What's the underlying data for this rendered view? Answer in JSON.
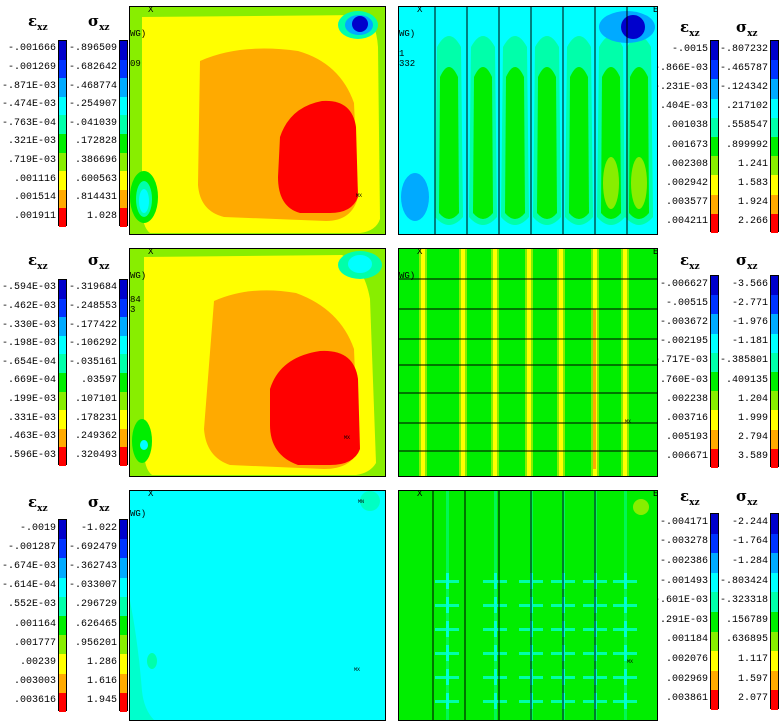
{
  "colors": [
    "#0000cc",
    "#0033ff",
    "#00aaff",
    "#00ffff",
    "#00ffaa",
    "#00ee00",
    "#88ee00",
    "#ffff00",
    "#ffaa00",
    "#ff0000"
  ],
  "legends": [
    {
      "eps_label": "ε",
      "eps_sub": "xz",
      "sig_label": "σ",
      "sig_sub": "xz",
      "eps": [
        "-.001666",
        "-.001269",
        "-.871E-03",
        "-.474E-03",
        "-.763E-04",
        ".321E-03",
        ".719E-03",
        ".001116",
        ".001514",
        ".001911"
      ],
      "sig": [
        "-.896509",
        "-.682642",
        "-.468774",
        "-.254907",
        "-.041039",
        ".172828",
        ".386696",
        ".600563",
        ".814431",
        "1.028"
      ]
    },
    {
      "eps_label": "ε",
      "eps_sub": "xz",
      "sig_label": "σ",
      "sig_sub": "xz",
      "eps": [
        "-.0015",
        "-.866E-03",
        "-.231E-03",
        ".404E-03",
        ".001038",
        ".001673",
        ".002308",
        ".002942",
        ".003577",
        ".004211"
      ],
      "sig": [
        "-.807232",
        "-.465787",
        "-.124342",
        ".217102",
        ".558547",
        ".899992",
        "1.241",
        "1.583",
        "1.924",
        "2.266"
      ]
    },
    {
      "eps_label": "ε",
      "eps_sub": "xz",
      "sig_label": "σ",
      "sig_sub": "xz",
      "eps": [
        "-.594E-03",
        "-.462E-03",
        "-.330E-03",
        "-.198E-03",
        "-.654E-04",
        ".669E-04",
        ".199E-03",
        ".331E-03",
        ".463E-03",
        ".596E-03"
      ],
      "sig": [
        "-.319684",
        "-.248553",
        "-.177422",
        "-.106292",
        "-.035161",
        ".03597",
        ".107101",
        ".178231",
        ".249362",
        ".320493"
      ]
    },
    {
      "eps_label": "ε",
      "eps_sub": "xz",
      "sig_label": "σ",
      "sig_sub": "xz",
      "eps": [
        "-.006627",
        "-.00515",
        "-.003672",
        "-.002195",
        "-.717E-03",
        ".760E-03",
        ".002238",
        ".003716",
        ".005193",
        ".006671"
      ],
      "sig": [
        "-3.566",
        "-2.771",
        "-1.976",
        "-1.181",
        "-.385801",
        ".409135",
        "1.204",
        "1.999",
        "2.794",
        "3.589"
      ]
    },
    {
      "eps_label": "ε",
      "eps_sub": "xz",
      "sig_label": "σ",
      "sig_sub": "xz",
      "eps": [
        "-.0019",
        "-.001287",
        "-.674E-03",
        "-.614E-04",
        ".552E-03",
        ".001164",
        ".001777",
        ".00239",
        ".003003",
        ".003616"
      ],
      "sig": [
        "-1.022",
        "-.692479",
        "-.362743",
        "-.033007",
        ".296729",
        ".626465",
        ".956201",
        "1.286",
        "1.616",
        "1.945"
      ]
    },
    {
      "eps_label": "ε",
      "eps_sub": "xz",
      "sig_label": "σ",
      "sig_sub": "xz",
      "eps": [
        "-.004171",
        "-.003278",
        "-.002386",
        "-.001493",
        "-.601E-03",
        ".291E-03",
        ".001184",
        ".002076",
        ".002969",
        ".003861"
      ],
      "sig": [
        "-2.244",
        "-1.764",
        "-1.284",
        "-.803424",
        "-.323318",
        ".156789",
        ".636895",
        "1.117",
        "1.597",
        "2.077"
      ]
    }
  ],
  "plot_text": {
    "axis_x": "X",
    "corner_e": "E",
    "avg": "WG)",
    "p1_a": "09",
    "p2_a": "1",
    "p2_b": "332",
    "p3_a": "84",
    "p3_b": "3",
    "mx": "MX",
    "mn": "MN"
  }
}
